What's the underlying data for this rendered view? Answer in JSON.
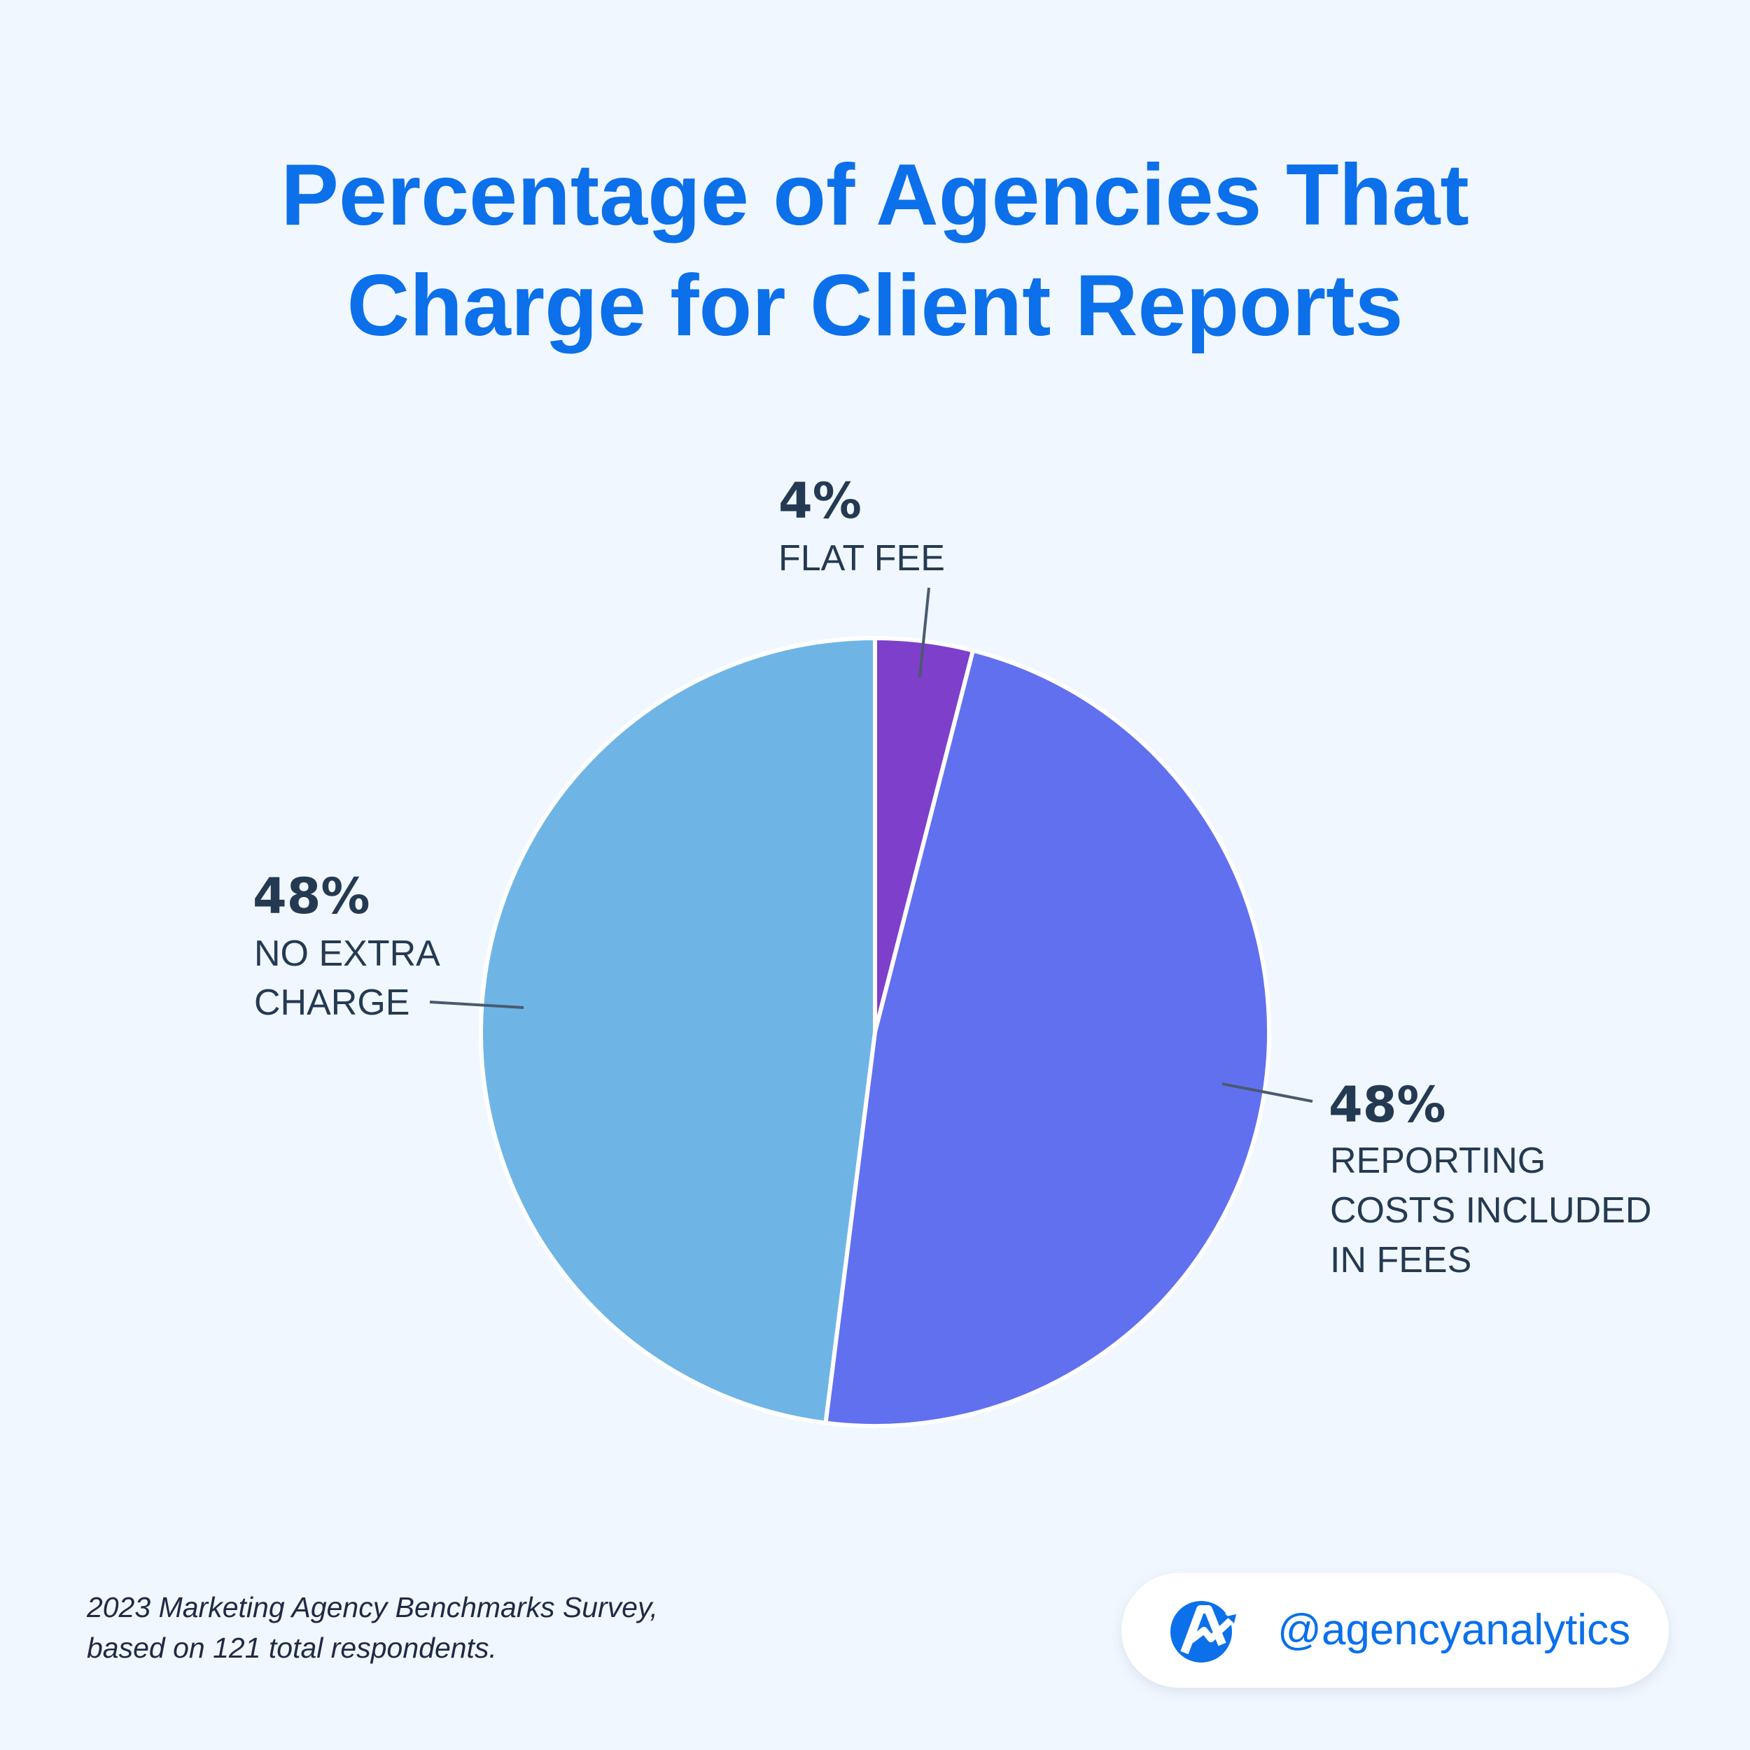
{
  "title": {
    "line1": "Percentage of Agencies That",
    "line2": "Charge for Client Reports"
  },
  "chart_data": {
    "type": "pie",
    "title": "Percentage of Agencies That Charge for Client Reports",
    "slices": [
      {
        "label": "FLAT FEE",
        "value": 4,
        "display": "4%",
        "color": "#7e3fcb"
      },
      {
        "label": "REPORTING COSTS INCLUDED IN FEES",
        "value": 48,
        "display": "48%",
        "color": "#6170ef"
      },
      {
        "label": "NO EXTRA CHARGE",
        "value": 48,
        "display": "48%",
        "color": "#6eb5e6"
      }
    ],
    "label_lines": {
      "flat_fee": [
        "FLAT FEE"
      ],
      "reporting": [
        "REPORTING",
        "COSTS INCLUDED",
        "IN FEES"
      ],
      "no_extra": [
        "NO EXTRA",
        "CHARGE"
      ]
    },
    "legend": "none"
  },
  "footnote": {
    "line1": "2023 Marketing Agency Benchmarks Survey,",
    "line2": "based on 121 total respondents."
  },
  "brand": {
    "handle": "@agencyanalytics",
    "logo_icon": "agencyanalytics-logo-icon",
    "accent": "#0b70ea"
  }
}
